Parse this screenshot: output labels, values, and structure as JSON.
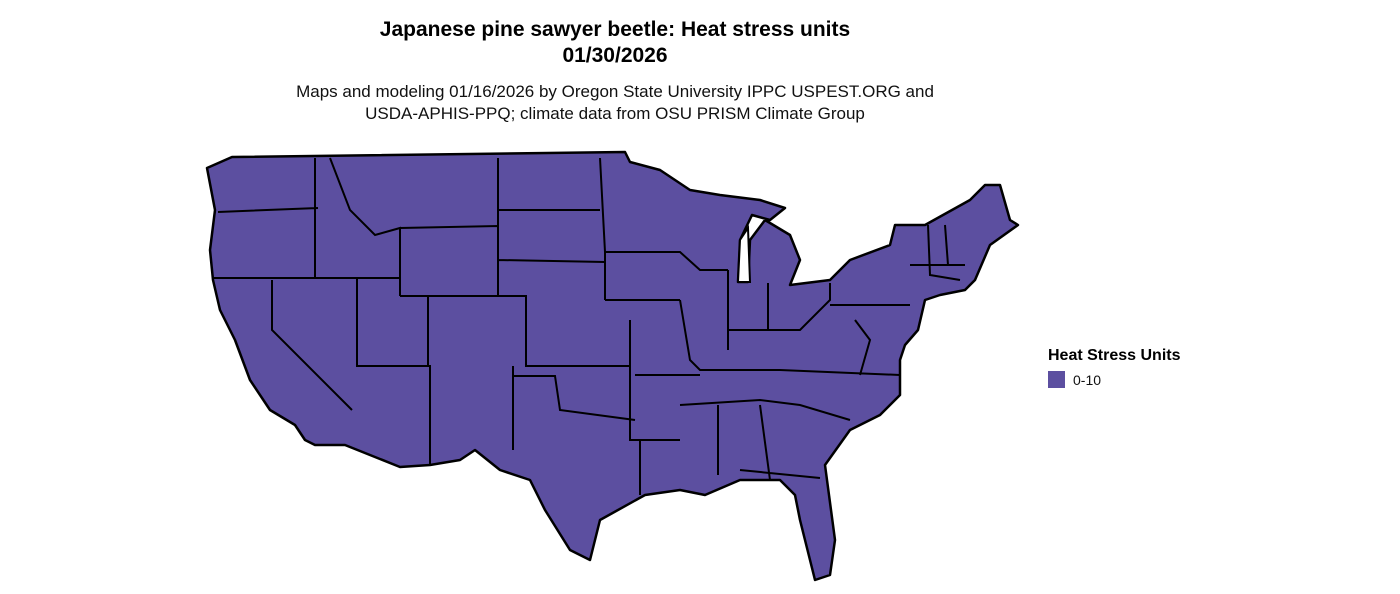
{
  "title_line1": "Japanese pine sawyer beetle: Heat stress units",
  "title_line2": "01/30/2026",
  "subtitle_line1": "Maps and modeling 01/16/2026 by Oregon State University IPPC USPEST.ORG and",
  "subtitle_line2": "USDA-APHIS-PPQ; climate data from OSU PRISM Climate Group",
  "legend": {
    "title": "Heat Stress Units",
    "items": [
      {
        "label": "0-10",
        "color": "#5c4fa0"
      }
    ]
  },
  "map": {
    "region": "Contiguous United States",
    "fill_color": "#5c4fa0",
    "border_color": "#000000"
  }
}
